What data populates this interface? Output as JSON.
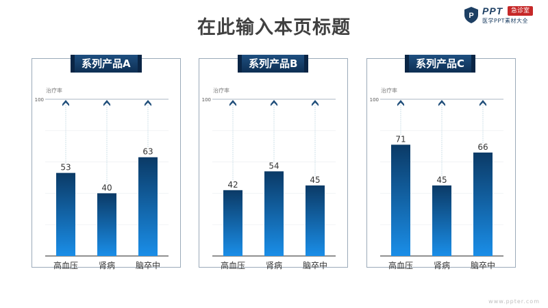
{
  "page": {
    "title": "在此输入本页标题",
    "logo_main": "PPT",
    "logo_badge": "急诊室",
    "logo_sub": "医学PPT素材大全",
    "footer": "www.ppter.com"
  },
  "colors": {
    "bar_top": "#0b3a66",
    "bar_bottom": "#1a8ee8",
    "tag_bg": "#164a7c",
    "title": "#404040"
  },
  "chart_data": [
    {
      "type": "bar",
      "title": "系列产品A",
      "ylabel": "治疗率",
      "ymax_label": "100",
      "ylim": [
        0,
        100
      ],
      "categories": [
        "高血压",
        "肾病",
        "脑卒中"
      ],
      "values": [
        53,
        40,
        63
      ]
    },
    {
      "type": "bar",
      "title": "系列产品B",
      "ylabel": "治疗率",
      "ymax_label": "100",
      "ylim": [
        0,
        100
      ],
      "categories": [
        "高血压",
        "肾病",
        "脑卒中"
      ],
      "values": [
        42,
        54,
        45
      ]
    },
    {
      "type": "bar",
      "title": "系列产品C",
      "ylabel": "治疗率",
      "ymax_label": "100",
      "ylim": [
        0,
        100
      ],
      "categories": [
        "高血压",
        "肾病",
        "脑卒中"
      ],
      "values": [
        71,
        45,
        66
      ]
    }
  ]
}
